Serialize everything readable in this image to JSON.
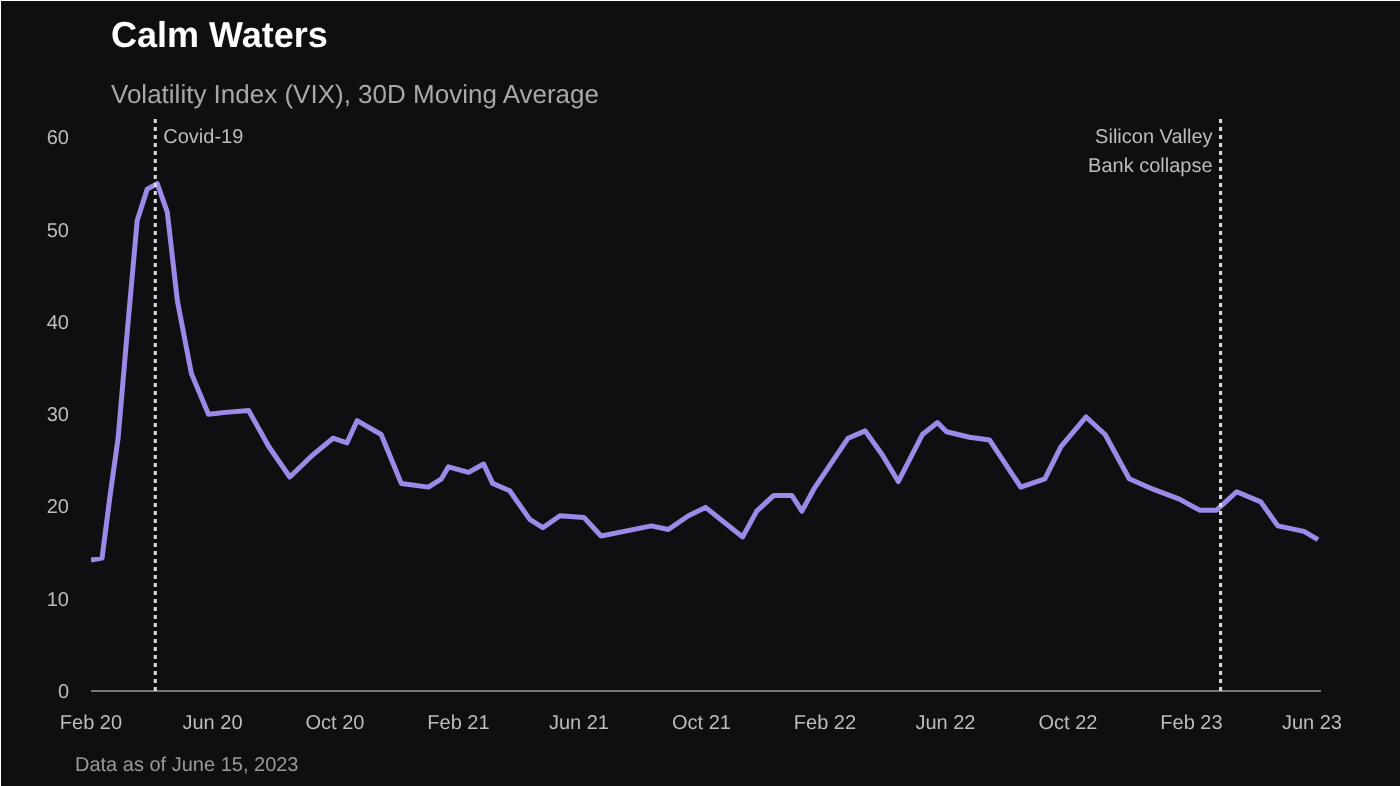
{
  "chart_data": {
    "type": "line",
    "title": "Calm Waters",
    "subtitle": "Volatility Index (VIX), 30D Moving Average",
    "x": [
      "2020-02-01",
      "2020-02-12",
      "2020-02-20",
      "2020-02-28",
      "2020-03-08",
      "2020-03-18",
      "2020-03-28",
      "2020-04-07",
      "2020-04-17",
      "2020-04-27",
      "2020-05-11",
      "2020-05-28",
      "2020-06-14",
      "2020-07-07",
      "2020-07-27",
      "2020-08-17",
      "2020-09-09",
      "2020-09-29",
      "2020-10-13",
      "2020-10-23",
      "2020-11-16",
      "2020-12-06",
      "2021-01-02",
      "2021-01-15",
      "2021-01-22",
      "2021-02-11",
      "2021-02-26",
      "2021-03-07",
      "2021-03-24",
      "2021-04-13",
      "2021-04-26",
      "2021-05-13",
      "2021-06-06",
      "2021-06-23",
      "2021-07-16",
      "2021-08-12",
      "2021-08-29",
      "2021-09-18",
      "2021-10-05",
      "2021-11-11",
      "2021-11-25",
      "2021-12-12",
      "2021-12-30",
      "2022-01-09",
      "2022-01-21",
      "2022-02-24",
      "2022-03-13",
      "2022-03-30",
      "2022-04-15",
      "2022-05-09",
      "2022-05-24",
      "2022-06-02",
      "2022-06-25",
      "2022-07-15",
      "2022-08-15",
      "2022-09-08",
      "2022-09-24",
      "2022-10-19",
      "2022-11-07",
      "2022-12-01",
      "2022-12-24",
      "2023-01-20",
      "2023-02-09",
      "2023-02-26",
      "2023-03-18",
      "2023-04-11",
      "2023-04-28",
      "2023-05-24",
      "2023-06-07"
    ],
    "series": [
      {
        "color": "#9d8ae8",
        "values": [
          14.2,
          14.4,
          21.2,
          27.4,
          38.8,
          51,
          54.4,
          55,
          51.9,
          42.3,
          34.4,
          30,
          30.2,
          30.4,
          26.5,
          23.2,
          25.6,
          27.4,
          26.9,
          29.3,
          27.8,
          22.5,
          22.1,
          23,
          24.3,
          23.7,
          24.6,
          22.5,
          21.7,
          18.6,
          17.7,
          19,
          18.8,
          16.8,
          17.3,
          17.9,
          17.5,
          19,
          19.9,
          16.7,
          19.5,
          21.2,
          21.2,
          19.5,
          21.9,
          27.4,
          28.2,
          25.6,
          22.7,
          27.8,
          29.1,
          28.1,
          27.5,
          27.2,
          22.1,
          23,
          26.5,
          29.7,
          27.8,
          23,
          21.9,
          20.8,
          19.6,
          19.6,
          21.6,
          20.5,
          17.9,
          17.3,
          16.4
        ]
      }
    ],
    "xlim": [
      "2020-02-01",
      "2023-06-10"
    ],
    "xticks": [
      {
        "value": "2020-02-01",
        "label": "Feb 20"
      },
      {
        "value": "2020-06-01",
        "label": "Jun 20"
      },
      {
        "value": "2020-10-01",
        "label": "Oct 20"
      },
      {
        "value": "2021-02-01",
        "label": "Feb 21"
      },
      {
        "value": "2021-06-01",
        "label": "Jun 21"
      },
      {
        "value": "2021-10-01",
        "label": "Oct 21"
      },
      {
        "value": "2022-02-01",
        "label": "Feb 22"
      },
      {
        "value": "2022-06-01",
        "label": "Jun 22"
      },
      {
        "value": "2022-10-01",
        "label": "Oct 22"
      },
      {
        "value": "2023-02-01",
        "label": "Feb 23"
      },
      {
        "value": "2023-06-01",
        "label": "Jun 23"
      }
    ],
    "ylim": [
      0,
      62
    ],
    "yticks": [
      0,
      10,
      20,
      30,
      40,
      50,
      60
    ],
    "ref_lines": [
      {
        "axis": "x",
        "value": "2020-04-05",
        "label": "Covid-19",
        "color": "#dddddd",
        "line_style": "dotted"
      },
      {
        "axis": "x",
        "value": "2023-03-02",
        "label": "Silicon Valley\nBank collapse",
        "color": "#dddddd",
        "line_style": "dotted"
      }
    ],
    "annotations": [
      "Data as of June 15, 2023"
    ],
    "grid": false
  }
}
